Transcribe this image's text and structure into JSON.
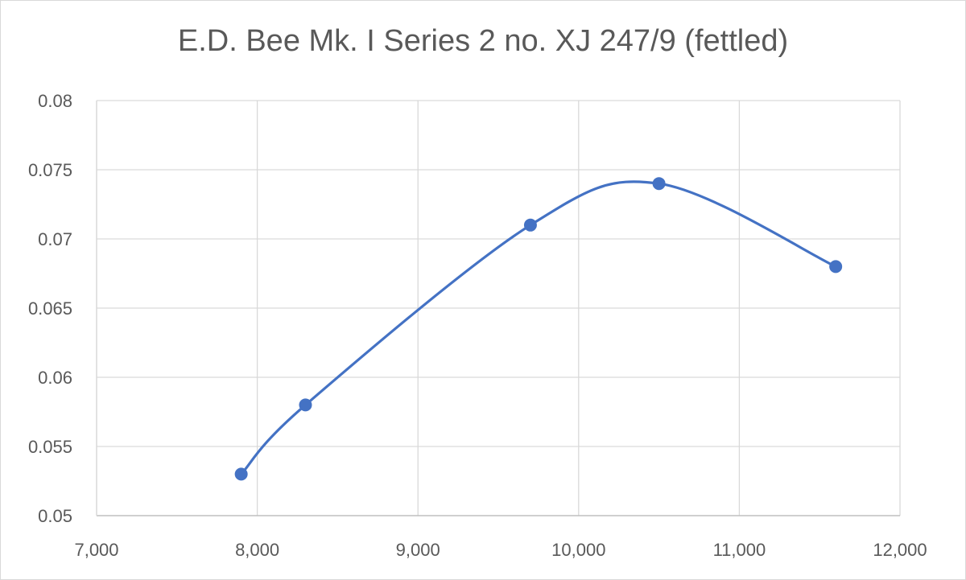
{
  "chart_data": {
    "type": "scatter",
    "title": "E.D. Bee Mk. I Series 2 no. XJ 247/9 (fettled)",
    "xlabel": "",
    "ylabel": "",
    "xlim": [
      7000,
      12000
    ],
    "ylim": [
      0.05,
      0.08
    ],
    "x_ticks": [
      7000,
      8000,
      9000,
      10000,
      11000,
      12000
    ],
    "x_tick_labels": [
      "7,000",
      "8,000",
      "9,000",
      "10,000",
      "11,000",
      "12,000"
    ],
    "y_ticks": [
      0.05,
      0.055,
      0.06,
      0.065,
      0.07,
      0.075,
      0.08
    ],
    "y_tick_labels": [
      "0.05",
      "0.055",
      "0.06",
      "0.065",
      "0.07",
      "0.075",
      "0.08"
    ],
    "grid": true,
    "line_style": "smoothed",
    "series": [
      {
        "x": [
          7900,
          8300,
          9700,
          10500,
          11600
        ],
        "y": [
          0.053,
          0.058,
          0.071,
          0.074,
          0.068
        ],
        "color": "#4472c4"
      }
    ]
  }
}
